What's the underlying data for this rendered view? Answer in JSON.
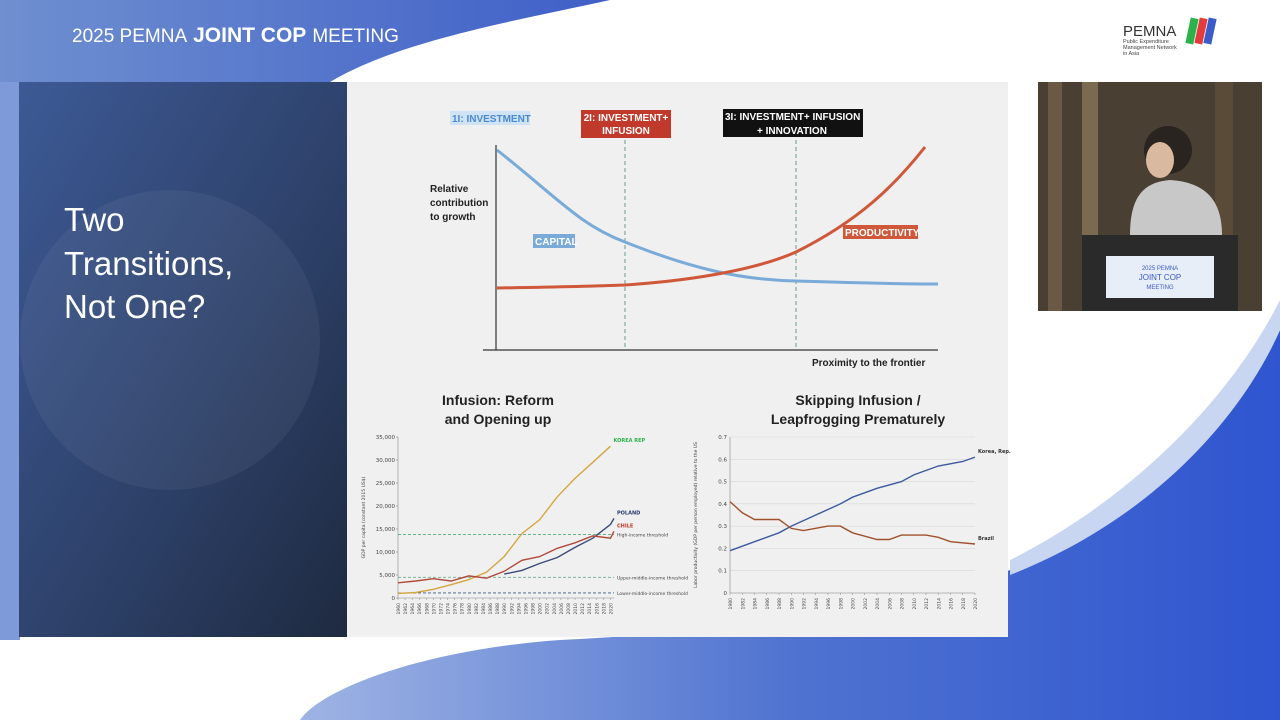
{
  "header": {
    "title": [
      "2025 PEMNA",
      "JOINT COP",
      "MEETING"
    ]
  },
  "logo": {
    "name": "PEMNA",
    "subtitle": [
      "Public Expenditure",
      "Management Network",
      "in Asia"
    ]
  },
  "slide": {
    "title": [
      "Two",
      "Transitions,",
      "Not One?"
    ],
    "concept": {
      "stage1": [
        "1I: INVESTMENT"
      ],
      "stage2": [
        "2I: INVESTMENT+",
        "INFUSION"
      ],
      "stage3": [
        "3I: INVESTMENT+ INFUSION",
        "+ INNOVATION"
      ],
      "y_label": [
        "Relative",
        "contribution",
        "to growth"
      ],
      "capital": "CAPITAL",
      "productivity": "PRODUCTIVITY",
      "x_label": "Proximity to the frontier"
    },
    "charts": [
      {
        "type": "line",
        "title": [
          "Infusion: Reform",
          "and Opening up"
        ],
        "y_label": "GDP per capita (constant 2015 US$)",
        "xlim": [
          1960,
          2021
        ],
        "xticks": [
          1960,
          1962,
          1964,
          1966,
          1968,
          1970,
          1972,
          1974,
          1976,
          1978,
          1980,
          1982,
          1984,
          1986,
          1988,
          1990,
          1992,
          1994,
          1996,
          1998,
          2000,
          2002,
          2004,
          2006,
          2008,
          2010,
          2012,
          2014,
          2016,
          2018,
          2020
        ],
        "ylim": [
          0,
          35000
        ],
        "yticks": [
          0,
          {
            "value": 5000,
            "label": "5,000"
          },
          {
            "value": 10000,
            "label": "10,000"
          },
          {
            "value": 15000,
            "label": "15,000"
          },
          {
            "value": 20000,
            "label": "20,000"
          },
          {
            "value": 25000,
            "label": "25,000"
          },
          {
            "value": 30000,
            "label": "30,000"
          },
          {
            "value": 35000,
            "label": "35,000"
          }
        ],
        "grid": false,
        "series": [
          {
            "name": "KOREA REP",
            "color": "#d4a640",
            "label_color": "#2bb34a",
            "x": [
              1960,
              1965,
              1970,
              1975,
              1980,
              1985,
              1990,
              1995,
              2000,
              2005,
              2010,
              2015,
              2020
            ],
            "values": [
              1000,
              1200,
              1900,
              2900,
              4000,
              5600,
              9000,
              14000,
              17000,
              22000,
              26000,
              29500,
              33000
            ]
          },
          {
            "name": "POLAND",
            "color": "#3a4a7a",
            "label_color": "#2b3a6e",
            "x": [
              1990,
              1995,
              2000,
              2005,
              2010,
              2015,
              2020,
              2021
            ],
            "values": [
              5200,
              6000,
              7500,
              8800,
              11000,
              13000,
              16000,
              17300
            ]
          },
          {
            "name": "CHILE",
            "color": "#b04a3a",
            "label_color": "#c0392b",
            "x": [
              1960,
              1965,
              1970,
              1975,
              1980,
              1985,
              1990,
              1995,
              2000,
              2005,
              2010,
              2015,
              2020,
              2021
            ],
            "values": [
              3300,
              3700,
              4200,
              3700,
              4800,
              4300,
              5800,
              8200,
              9000,
              10800,
              12000,
              13500,
              13000,
              14500
            ]
          }
        ],
        "thresholds": [
          {
            "name": "High-income threshold",
            "value": 13800,
            "color": "#3aa06a"
          },
          {
            "name": "Upper-middle-income threshold",
            "value": 4500,
            "color": "#6aaa8a"
          },
          {
            "name": "Lower-middle-income threshold",
            "value": 1100,
            "color": "#3a5a8a"
          }
        ]
      },
      {
        "type": "line",
        "title": [
          "Skipping Infusion /",
          "Leapfrogging Prematurely"
        ],
        "y_label": "Labor productivity (GDP per person employed) relative to the US",
        "xlim": [
          1980,
          2020
        ],
        "xticks": [
          1980,
          1982,
          1984,
          1986,
          1988,
          1990,
          1992,
          1994,
          1996,
          1998,
          2000,
          2002,
          2004,
          2006,
          2008,
          2010,
          2012,
          2014,
          2016,
          2018,
          2020
        ],
        "ylim": [
          0,
          0.7
        ],
        "yticks": [
          0,
          0.1,
          0.2,
          0.3,
          0.4,
          0.5,
          0.6,
          0.7
        ],
        "grid": true,
        "series": [
          {
            "name": "Korea, Rep.",
            "color": "#3d5a9e",
            "label_color": "#333333",
            "x": [
              1980,
              1984,
              1988,
              1990,
              1994,
              1998,
              2000,
              2004,
              2008,
              2010,
              2014,
              2018,
              2020
            ],
            "values": [
              0.19,
              0.23,
              0.27,
              0.3,
              0.35,
              0.4,
              0.43,
              0.47,
              0.5,
              0.53,
              0.57,
              0.59,
              0.61
            ]
          },
          {
            "name": "Brazil",
            "color": "#a0522d",
            "label_color": "#333333",
            "x": [
              1980,
              1982,
              1984,
              1988,
              1990,
              1992,
              1996,
              1998,
              2000,
              2004,
              2006,
              2008,
              2012,
              2014,
              2016,
              2020
            ],
            "values": [
              0.41,
              0.36,
              0.33,
              0.33,
              0.29,
              0.28,
              0.3,
              0.3,
              0.27,
              0.24,
              0.24,
              0.26,
              0.26,
              0.25,
              0.23,
              0.22
            ]
          }
        ],
        "thresholds": []
      }
    ]
  },
  "podium": {
    "text": [
      "2025 PEMNA",
      "JOINT COP",
      "MEETING"
    ]
  }
}
